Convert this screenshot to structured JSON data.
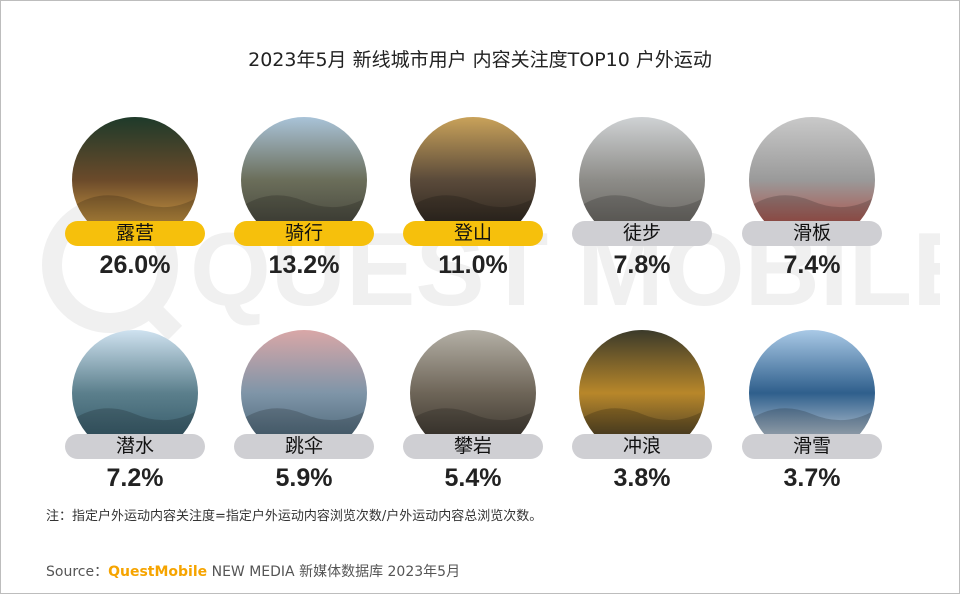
{
  "title": "2023年5月 新线城市用户 内容关注度TOP10 户外运动",
  "watermark": "QUEST MOBILE",
  "chart_data": {
    "type": "bar",
    "title": "2023年5月 新线城市用户 内容关注度TOP10 户外运动",
    "unit": "%",
    "categories": [
      "露营",
      "骑行",
      "登山",
      "徒步",
      "滑板",
      "潜水",
      "跳伞",
      "攀岩",
      "冲浪",
      "滑雪"
    ],
    "values": [
      26.0,
      13.2,
      11.0,
      7.8,
      7.4,
      7.2,
      5.9,
      5.4,
      3.8,
      3.7
    ],
    "labels": [
      "26.0%",
      "13.2%",
      "11.0%",
      "7.8%",
      "7.4%",
      "7.2%",
      "5.9%",
      "5.4%",
      "3.8%",
      "3.7%"
    ],
    "highlight_top": 3,
    "colors": {
      "highlight": "#f6c00c",
      "normal": "#cfcfd3"
    }
  },
  "note": "注：指定户外运动内容关注度=指定户外运动内容浏览次数/户外运动内容总浏览次数。",
  "source": {
    "prefix": "Source：",
    "brand": "QuestMobile",
    "rest": " NEW MEDIA 新媒体数据库 2023年5月"
  }
}
